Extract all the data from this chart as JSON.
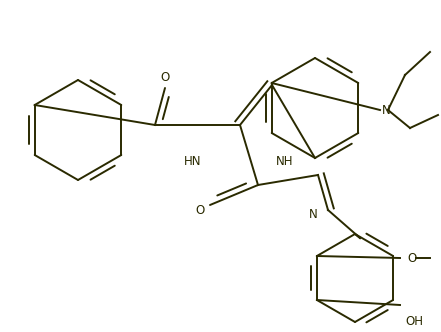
{
  "bg_color": "#ffffff",
  "line_color": "#2a2a00",
  "line_width": 1.4,
  "font_size": 8.5,
  "fig_width": 4.41,
  "fig_height": 3.32,
  "dpi": 100,
  "xlim": [
    0,
    441
  ],
  "ylim": [
    0,
    332
  ]
}
